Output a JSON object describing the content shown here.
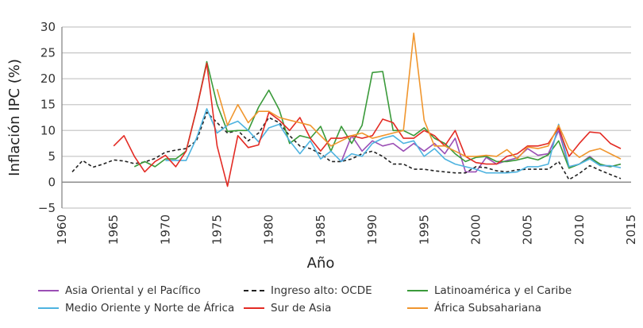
{
  "chart_data": {
    "type": "line",
    "title": "",
    "xlabel": "Año",
    "ylabel": "Inflación IPC (%)",
    "xlim": [
      1960,
      2015
    ],
    "ylim": [
      -5,
      30
    ],
    "xticks": [
      1960,
      1965,
      1970,
      1975,
      1980,
      1985,
      1990,
      1995,
      2000,
      2005,
      2010,
      2015
    ],
    "yticks": [
      -5,
      0,
      5,
      10,
      15,
      20,
      25,
      30
    ],
    "ytick_labels": [
      "−5",
      "0",
      "5",
      "10",
      "15",
      "20",
      "25",
      "30"
    ],
    "grid": true,
    "legend_position": "bottom",
    "series": [
      {
        "name": "Asia Oriental y el Pacífico",
        "color": "#9b4fb5",
        "dash": false,
        "start": 1987,
        "values": [
          4,
          9,
          6,
          8,
          7,
          7.5,
          6,
          7.5,
          6,
          7.5,
          5.5,
          8.5,
          2,
          2,
          4.8,
          3.5,
          4.2,
          4.7,
          6.5,
          5.2,
          5.5,
          10,
          3,
          3.5,
          5,
          3.3,
          3,
          3.5
        ]
      },
      {
        "name": "Ingreso alto: OCDE",
        "color": "#222222",
        "dash": true,
        "start": 1961,
        "values": [
          2,
          4.2,
          2.9,
          3.5,
          4.3,
          4.1,
          3.6,
          3.9,
          4.6,
          5.8,
          6.2,
          6.5,
          8,
          13.5,
          11.5,
          9.5,
          10,
          8,
          9.5,
          12.5,
          11.5,
          9,
          7,
          6.5,
          5.5,
          4,
          4,
          4.5,
          5.5,
          6,
          5,
          3.5,
          3.5,
          2.5,
          2.5,
          2.2,
          2,
          1.8,
          1.8,
          3,
          2.8,
          2.2,
          2,
          2.4,
          2.5,
          2.5,
          2.5,
          4,
          0.5,
          1.7,
          3.2,
          2.3,
          1.5,
          0.7
        ]
      },
      {
        "name": "Latinoamérica y el Caribe",
        "color": "#3a9a3a",
        "dash": false,
        "start": 1967,
        "values": [
          3,
          4,
          3,
          4.5,
          4.5,
          6,
          14,
          23.3,
          15,
          9.8,
          10,
          10,
          14.5,
          17.8,
          14,
          7.5,
          9,
          8.5,
          10.8,
          6,
          10.8,
          7.5,
          11,
          21.2,
          21.4,
          10,
          10,
          9,
          10.5,
          8.5,
          7.5,
          5.5,
          4,
          4.8,
          5,
          4,
          4,
          4.3,
          4.8,
          4.3,
          5.3,
          8,
          2.7,
          3.5,
          4.8,
          3.5,
          3,
          3.5
        ]
      },
      {
        "name": "Medio Oriente y Norte de África",
        "color": "#4eb3e0",
        "dash": false,
        "start": 1970,
        "values": [
          4.2,
          4.2,
          4.2,
          8.5,
          14.2,
          9.5,
          11,
          11.8,
          10,
          7.8,
          10.5,
          11.2,
          8,
          5.5,
          8,
          4.5,
          6,
          4,
          5.5,
          5,
          7.5,
          8.5,
          9,
          7.5,
          8,
          5,
          6.5,
          4.5,
          3.5,
          3,
          2.5,
          1.8,
          1.8,
          1.8,
          2,
          3,
          3,
          3.5,
          11.2,
          3,
          3.5,
          4.5,
          3.2,
          3.2,
          2.8
        ]
      },
      {
        "name": "Sur de Asia",
        "color": "#e32b24",
        "dash": false,
        "start": 1965,
        "values": [
          7,
          9,
          5,
          2,
          4,
          5.2,
          3,
          6,
          14,
          23,
          7,
          -0.8,
          9,
          6.7,
          7.2,
          13.5,
          12,
          10,
          12.5,
          8.5,
          6,
          8.5,
          8.5,
          9,
          8.5,
          9,
          12.2,
          11.5,
          8.5,
          8.5,
          10,
          9,
          7,
          10,
          5,
          3.8,
          3.5,
          3.5,
          5,
          5.5,
          7,
          7,
          7.5,
          10.5,
          5,
          7.5,
          9.7,
          9.5,
          7.5,
          6.5
        ]
      },
      {
        "name": "África Subsahariana",
        "color": "#f0962e",
        "dash": false,
        "start": 1975,
        "values": [
          18,
          11,
          15,
          11.5,
          13.7,
          13.7,
          12.5,
          12,
          11.5,
          11,
          9,
          7,
          8,
          9,
          9.5,
          8.5,
          9,
          9.5,
          10,
          28.8,
          12,
          7,
          7,
          6,
          5,
          5,
          5.2,
          5,
          6.3,
          4.5,
          6.8,
          6.5,
          7,
          11,
          6.5,
          4.8,
          6,
          6.5,
          5.5,
          4.5
        ]
      }
    ]
  }
}
